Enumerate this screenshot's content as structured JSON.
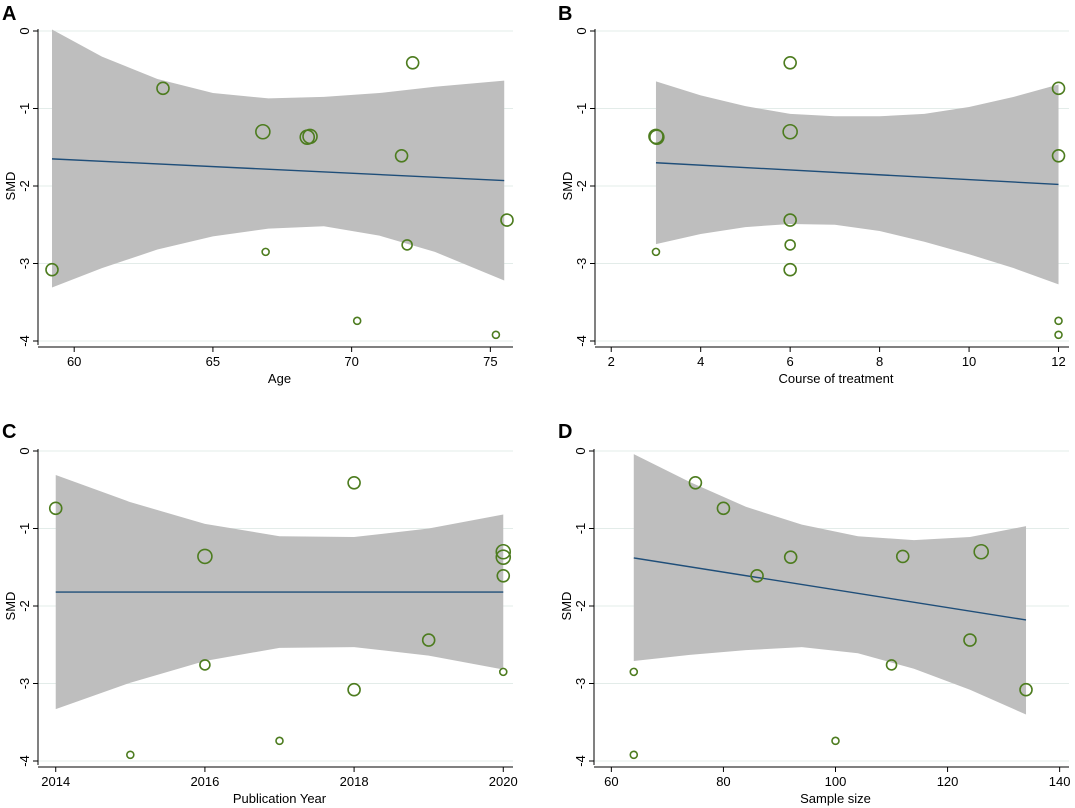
{
  "chart_data": [
    {
      "panel": "A",
      "type": "scatter",
      "xlabel": "Age",
      "ylabel": "SMD",
      "xlim": [
        59.2,
        75.6
      ],
      "ylim": [
        -4,
        0
      ],
      "xticks": [
        60,
        65,
        70,
        75
      ],
      "yticks": [
        0,
        -1,
        -2,
        -3,
        -4
      ],
      "fit": {
        "x": [
          59.2,
          75.5
        ],
        "y": [
          -1.65,
          -1.93
        ]
      },
      "ci": {
        "x": [
          59.2,
          61,
          63,
          65,
          67,
          69,
          71,
          73,
          75.5
        ],
        "upper": [
          0.02,
          -0.33,
          -0.62,
          -0.8,
          -0.87,
          -0.85,
          -0.8,
          -0.72,
          -0.64
        ],
        "lower": [
          -3.31,
          -3.06,
          -2.82,
          -2.65,
          -2.55,
          -2.52,
          -2.64,
          -2.85,
          -3.22
        ]
      },
      "points": [
        {
          "x": 59.2,
          "y": -3.08,
          "size": 3
        },
        {
          "x": 63.2,
          "y": -0.74,
          "size": 3
        },
        {
          "x": 66.8,
          "y": -1.3,
          "size": 4
        },
        {
          "x": 66.9,
          "y": -2.85,
          "size": 1
        },
        {
          "x": 68.4,
          "y": -1.37,
          "size": 4
        },
        {
          "x": 68.5,
          "y": -1.36,
          "size": 4
        },
        {
          "x": 70.2,
          "y": -3.74,
          "size": 1
        },
        {
          "x": 71.8,
          "y": -1.61,
          "size": 3
        },
        {
          "x": 72.0,
          "y": -2.76,
          "size": 2
        },
        {
          "x": 72.2,
          "y": -0.41,
          "size": 3
        },
        {
          "x": 75.2,
          "y": -3.92,
          "size": 1
        },
        {
          "x": 75.6,
          "y": -2.44,
          "size": 3
        }
      ]
    },
    {
      "panel": "B",
      "type": "scatter",
      "xlabel": "Course of treatment",
      "ylabel": "SMD",
      "xlim": [
        1.95,
        12.1
      ],
      "ylim": [
        -4,
        0
      ],
      "xticks": [
        2,
        4,
        6,
        8,
        10,
        12
      ],
      "yticks": [
        0,
        -1,
        -2,
        -3,
        -4
      ],
      "fit": {
        "x": [
          3,
          12
        ],
        "y": [
          -1.7,
          -1.98
        ]
      },
      "ci": {
        "x": [
          3,
          4,
          5,
          6,
          7,
          8,
          9,
          10,
          11,
          12
        ],
        "upper": [
          -0.65,
          -0.83,
          -0.97,
          -1.07,
          -1.1,
          -1.1,
          -1.07,
          -0.98,
          -0.85,
          -0.69
        ],
        "lower": [
          -2.75,
          -2.62,
          -2.53,
          -2.49,
          -2.5,
          -2.58,
          -2.72,
          -2.88,
          -3.06,
          -3.27
        ]
      },
      "points": [
        {
          "x": 3,
          "y": -1.36,
          "size": 4
        },
        {
          "x": 3.02,
          "y": -1.37,
          "size": 4
        },
        {
          "x": 3,
          "y": -2.85,
          "size": 1
        },
        {
          "x": 6,
          "y": -0.41,
          "size": 3
        },
        {
          "x": 6,
          "y": -1.3,
          "size": 4
        },
        {
          "x": 6,
          "y": -2.44,
          "size": 3
        },
        {
          "x": 6,
          "y": -2.76,
          "size": 2
        },
        {
          "x": 6,
          "y": -3.08,
          "size": 3
        },
        {
          "x": 12,
          "y": -0.74,
          "size": 3
        },
        {
          "x": 12,
          "y": -1.61,
          "size": 3
        },
        {
          "x": 12,
          "y": -3.74,
          "size": 1
        },
        {
          "x": 12,
          "y": -3.92,
          "size": 1
        }
      ]
    },
    {
      "panel": "C",
      "type": "scatter",
      "xlabel": "Publication Year",
      "ylabel": "SMD",
      "xlim": [
        2013.95,
        2020.05
      ],
      "ylim": [
        -4,
        0
      ],
      "xticks": [
        2014,
        2016,
        2018,
        2020
      ],
      "yticks": [
        0,
        -1,
        -2,
        -3,
        -4
      ],
      "fit": {
        "x": [
          2014,
          2020
        ],
        "y": [
          -1.82,
          -1.82
        ]
      },
      "ci": {
        "x": [
          2014,
          2015,
          2016,
          2017,
          2018,
          2019,
          2020
        ],
        "upper": [
          -0.31,
          -0.66,
          -0.94,
          -1.1,
          -1.11,
          -1.0,
          -0.82
        ],
        "lower": [
          -3.33,
          -2.99,
          -2.71,
          -2.54,
          -2.53,
          -2.64,
          -2.82
        ]
      },
      "points": [
        {
          "x": 2014,
          "y": -0.74,
          "size": 3
        },
        {
          "x": 2015,
          "y": -3.92,
          "size": 1
        },
        {
          "x": 2016,
          "y": -1.36,
          "size": 4
        },
        {
          "x": 2016,
          "y": -2.76,
          "size": 2
        },
        {
          "x": 2017,
          "y": -3.74,
          "size": 1
        },
        {
          "x": 2018,
          "y": -0.41,
          "size": 3
        },
        {
          "x": 2018,
          "y": -3.08,
          "size": 3
        },
        {
          "x": 2019,
          "y": -2.44,
          "size": 3
        },
        {
          "x": 2020,
          "y": -1.3,
          "size": 4
        },
        {
          "x": 2020,
          "y": -1.37,
          "size": 4
        },
        {
          "x": 2020,
          "y": -1.61,
          "size": 3
        },
        {
          "x": 2020,
          "y": -2.85,
          "size": 1
        }
      ]
    },
    {
      "panel": "D",
      "type": "scatter",
      "xlabel": "Sample size",
      "ylabel": "SMD",
      "xlim": [
        59.4,
        140.6
      ],
      "ylim": [
        -4,
        0
      ],
      "xticks": [
        60,
        80,
        100,
        120,
        140
      ],
      "yticks": [
        0,
        -1,
        -2,
        -3,
        -4
      ],
      "fit": {
        "x": [
          64,
          134
        ],
        "y": [
          -1.38,
          -2.18
        ]
      },
      "ci": {
        "x": [
          64,
          74,
          84,
          94,
          104,
          114,
          124,
          134
        ],
        "upper": [
          -0.04,
          -0.4,
          -0.72,
          -0.95,
          -1.1,
          -1.15,
          -1.11,
          -0.97
        ],
        "lower": [
          -2.71,
          -2.63,
          -2.57,
          -2.53,
          -2.61,
          -2.81,
          -3.08,
          -3.4
        ]
      },
      "points": [
        {
          "x": 64,
          "y": -2.85,
          "size": 1
        },
        {
          "x": 64,
          "y": -3.92,
          "size": 1
        },
        {
          "x": 75,
          "y": -0.41,
          "size": 3
        },
        {
          "x": 80,
          "y": -0.74,
          "size": 3
        },
        {
          "x": 86,
          "y": -1.61,
          "size": 3
        },
        {
          "x": 92,
          "y": -1.37,
          "size": 3
        },
        {
          "x": 100,
          "y": -3.74,
          "size": 1
        },
        {
          "x": 110,
          "y": -2.76,
          "size": 2
        },
        {
          "x": 112,
          "y": -1.36,
          "size": 3
        },
        {
          "x": 124,
          "y": -2.44,
          "size": 3
        },
        {
          "x": 126,
          "y": -1.3,
          "size": 4
        },
        {
          "x": 134,
          "y": -3.08,
          "size": 3
        }
      ]
    }
  ]
}
